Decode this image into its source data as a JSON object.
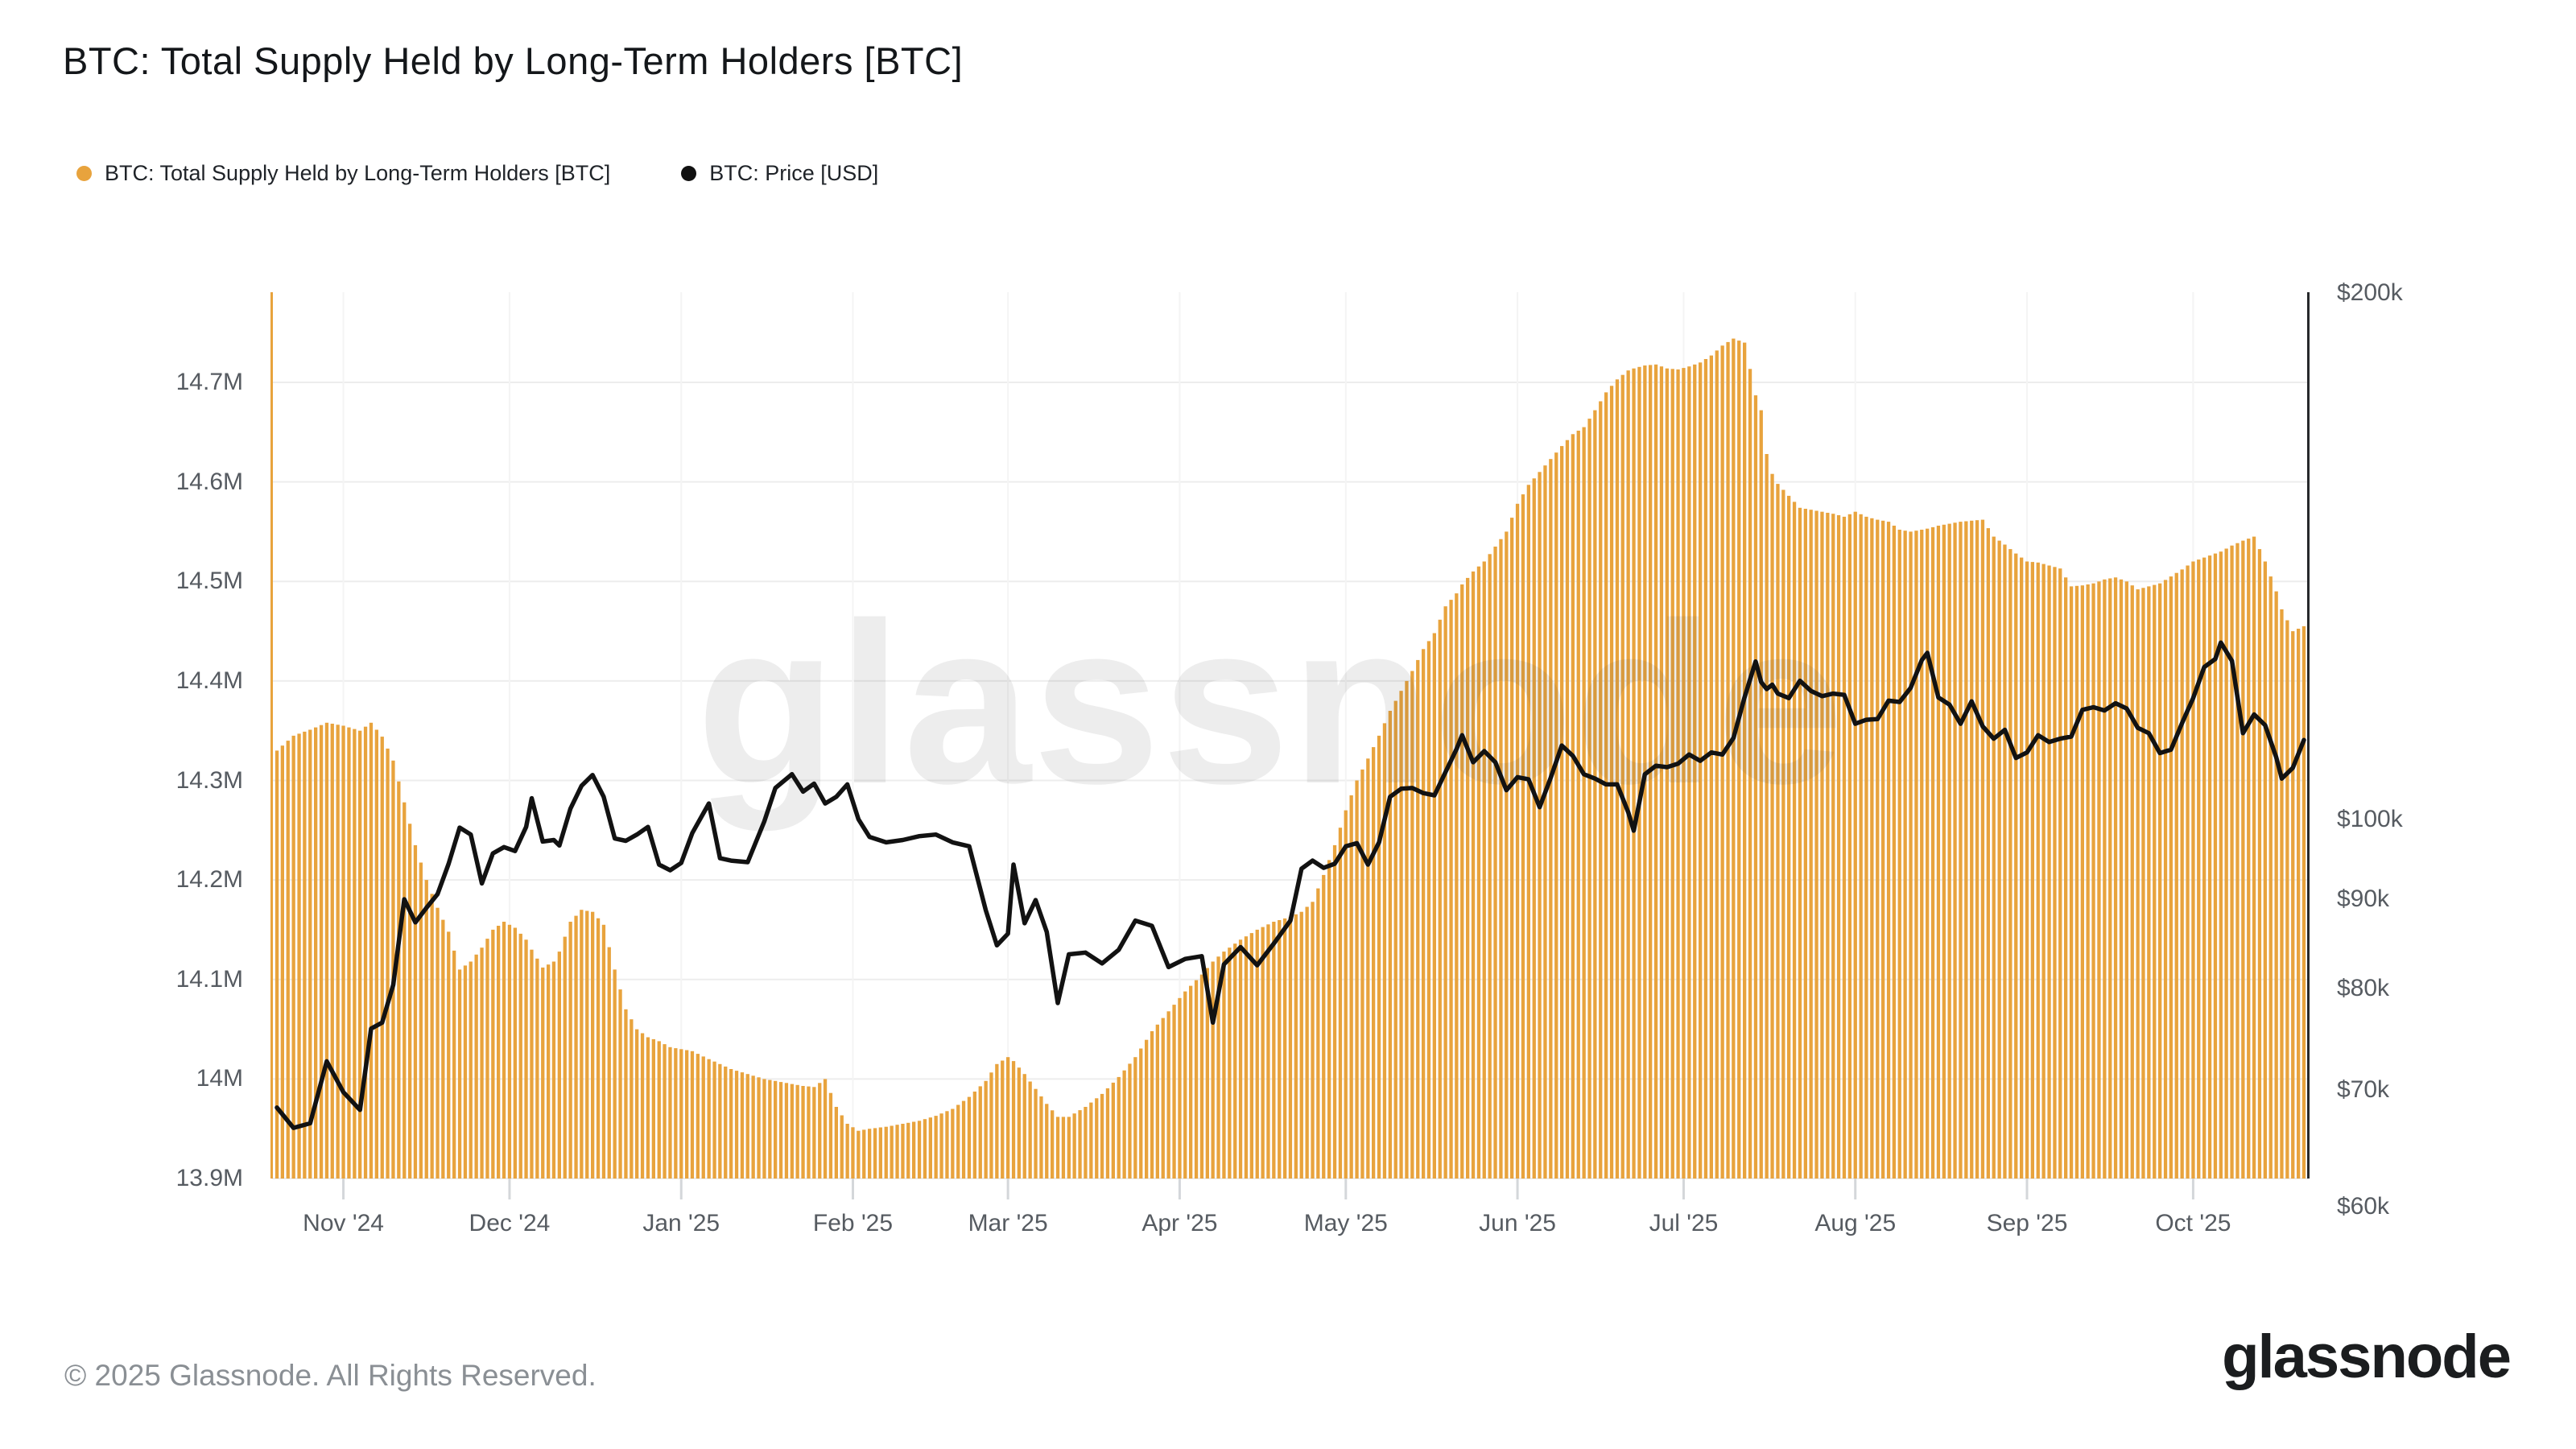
{
  "title": "BTC: Total Supply Held by Long-Term Holders [BTC]",
  "legend": [
    {
      "label": "BTC: Total Supply Held by Long-Term Holders [BTC]",
      "color": "#E8A33D"
    },
    {
      "label": "BTC: Price [USD]",
      "color": "#111111"
    }
  ],
  "watermark": {
    "text": "glassnode"
  },
  "footer": {
    "copyright": "© 2025 Glassnode. All Rights Reserved.",
    "brand": "glassnode"
  },
  "colors": {
    "bar": "#E8A33D",
    "line": "#121212",
    "left_axis_line": "#E8A33D",
    "right_axis_line": "#26282b",
    "gridline": "#ededed",
    "month_gridline": "#f4f4f4",
    "tick": "#d4d7da",
    "axis_text": "#565b61",
    "watermark": "rgba(80,80,80,0.10)"
  },
  "chart_data": {
    "type": "combo",
    "title": "BTC: Total Supply Held by Long-Term Holders [BTC]",
    "series": [
      {
        "name": "BTC: Total Supply Held by Long-Term Holders [BTC]",
        "type": "bar",
        "axis": "left",
        "color": "#E8A33D",
        "unit": "BTC (millions)"
      },
      {
        "name": "BTC: Price [USD]",
        "type": "line",
        "axis": "right",
        "color": "#121212",
        "unit": "USD (thousands)"
      }
    ],
    "x_axis": {
      "range": [
        "2024-10-20",
        "2025-10-21"
      ],
      "ticks": [
        {
          "date": "2024-11-01",
          "label": "Nov '24"
        },
        {
          "date": "2024-12-01",
          "label": "Dec '24"
        },
        {
          "date": "2025-01-01",
          "label": "Jan '25"
        },
        {
          "date": "2025-02-01",
          "label": "Feb '25"
        },
        {
          "date": "2025-03-01",
          "label": "Mar '25"
        },
        {
          "date": "2025-04-01",
          "label": "Apr '25"
        },
        {
          "date": "2025-05-01",
          "label": "May '25"
        },
        {
          "date": "2025-06-01",
          "label": "Jun '25"
        },
        {
          "date": "2025-07-01",
          "label": "Jul '25"
        },
        {
          "date": "2025-08-01",
          "label": "Aug '25"
        },
        {
          "date": "2025-09-01",
          "label": "Sep '25"
        },
        {
          "date": "2025-10-01",
          "label": "Oct '25"
        }
      ]
    },
    "y_left": {
      "scale": "linear",
      "plot_min": 13.9,
      "plot_max": 14.7906,
      "grid": true,
      "ticks": [
        {
          "v": 14.7,
          "label": "14.7M"
        },
        {
          "v": 14.6,
          "label": "14.6M"
        },
        {
          "v": 14.5,
          "label": "14.5M"
        },
        {
          "v": 14.4,
          "label": "14.4M"
        },
        {
          "v": 14.3,
          "label": "14.3M"
        },
        {
          "v": 14.2,
          "label": "14.2M"
        },
        {
          "v": 14.1,
          "label": "14.1M"
        },
        {
          "v": 14.0,
          "label": "14M"
        },
        {
          "v": 13.9,
          "label": "13.9M"
        }
      ]
    },
    "y_right": {
      "scale": "log",
      "plot_min": 62.3,
      "plot_max": 200.2,
      "grid": false,
      "ticks": [
        {
          "v": 200,
          "label": "$200k"
        },
        {
          "v": 100,
          "label": "$100k"
        },
        {
          "v": 90,
          "label": "$90k"
        },
        {
          "v": 80,
          "label": "$80k"
        },
        {
          "v": 70,
          "label": "$70k"
        },
        {
          "v": 60,
          "label": "$60k"
        }
      ]
    },
    "points_format": [
      "date",
      "supply_m_btc",
      "price_k_usd"
    ],
    "points": [
      [
        "2024-10-20",
        14.33,
        68.4
      ],
      [
        "2024-10-23",
        14.345,
        66.6
      ],
      [
        "2024-10-26",
        14.351,
        67.0
      ],
      [
        "2024-10-29",
        14.358,
        72.7
      ],
      [
        "2024-11-01",
        14.355,
        69.8
      ],
      [
        "2024-11-04",
        14.35,
        68.2
      ],
      [
        "2024-11-06",
        14.358,
        75.9
      ],
      [
        "2024-11-08",
        14.344,
        76.5
      ],
      [
        "2024-11-10",
        14.32,
        80.4
      ],
      [
        "2024-11-12",
        14.278,
        90.0
      ],
      [
        "2024-11-14",
        14.235,
        87.3
      ],
      [
        "2024-11-16",
        14.2,
        89.0
      ],
      [
        "2024-11-18",
        14.172,
        90.6
      ],
      [
        "2024-11-20",
        14.148,
        94.3
      ],
      [
        "2024-11-22",
        14.11,
        98.9
      ],
      [
        "2024-11-24",
        14.118,
        98.0
      ],
      [
        "2024-11-26",
        14.132,
        91.9
      ],
      [
        "2024-11-28",
        14.15,
        95.6
      ],
      [
        "2024-11-30",
        14.158,
        96.4
      ],
      [
        "2024-12-02",
        14.152,
        95.9
      ],
      [
        "2024-12-04",
        14.14,
        99.0
      ],
      [
        "2024-12-05",
        14.13,
        102.8
      ],
      [
        "2024-12-07",
        14.112,
        97.1
      ],
      [
        "2024-12-09",
        14.118,
        97.3
      ],
      [
        "2024-12-10",
        14.128,
        96.6
      ],
      [
        "2024-12-12",
        14.158,
        101.4
      ],
      [
        "2024-12-14",
        14.17,
        104.5
      ],
      [
        "2024-12-16",
        14.168,
        106.0
      ],
      [
        "2024-12-18",
        14.155,
        103.0
      ],
      [
        "2024-12-20",
        14.11,
        97.5
      ],
      [
        "2024-12-22",
        14.07,
        97.2
      ],
      [
        "2024-12-24",
        14.05,
        98.0
      ],
      [
        "2024-12-26",
        14.042,
        99.0
      ],
      [
        "2024-12-28",
        14.038,
        94.2
      ],
      [
        "2024-12-30",
        14.032,
        93.5
      ],
      [
        "2025-01-01",
        14.03,
        94.4
      ],
      [
        "2025-01-03",
        14.028,
        98.2
      ],
      [
        "2025-01-06",
        14.02,
        102.1
      ],
      [
        "2025-01-08",
        14.015,
        95.0
      ],
      [
        "2025-01-10",
        14.01,
        94.7
      ],
      [
        "2025-01-13",
        14.005,
        94.5
      ],
      [
        "2025-01-16",
        14.0,
        99.7
      ],
      [
        "2025-01-18",
        13.998,
        104.2
      ],
      [
        "2025-01-21",
        13.995,
        106.1
      ],
      [
        "2025-01-23",
        13.993,
        103.7
      ],
      [
        "2025-01-25",
        13.992,
        104.8
      ],
      [
        "2025-01-27",
        14.0,
        102.1
      ],
      [
        "2025-01-29",
        13.972,
        103.0
      ],
      [
        "2025-01-31",
        13.955,
        104.7
      ],
      [
        "2025-02-02",
        13.948,
        100.0
      ],
      [
        "2025-02-04",
        13.95,
        97.7
      ],
      [
        "2025-02-07",
        13.952,
        97.0
      ],
      [
        "2025-02-10",
        13.955,
        97.3
      ],
      [
        "2025-02-13",
        13.958,
        97.8
      ],
      [
        "2025-02-16",
        13.963,
        98.0
      ],
      [
        "2025-02-19",
        13.97,
        97.0
      ],
      [
        "2025-02-22",
        13.982,
        96.5
      ],
      [
        "2025-02-25",
        13.998,
        88.7
      ],
      [
        "2025-02-27",
        14.015,
        84.7
      ],
      [
        "2025-03-01",
        14.022,
        86.0
      ],
      [
        "2025-03-02",
        14.018,
        94.2
      ],
      [
        "2025-03-04",
        14.005,
        87.2
      ],
      [
        "2025-03-06",
        13.99,
        89.9
      ],
      [
        "2025-03-08",
        13.975,
        86.2
      ],
      [
        "2025-03-10",
        13.962,
        78.5
      ],
      [
        "2025-03-12",
        13.962,
        83.7
      ],
      [
        "2025-03-15",
        13.972,
        83.9
      ],
      [
        "2025-03-18",
        13.985,
        82.7
      ],
      [
        "2025-03-21",
        14.002,
        84.2
      ],
      [
        "2025-03-24",
        14.022,
        87.5
      ],
      [
        "2025-03-27",
        14.048,
        86.9
      ],
      [
        "2025-03-30",
        14.068,
        82.3
      ],
      [
        "2025-04-02",
        14.088,
        83.2
      ],
      [
        "2025-04-05",
        14.105,
        83.5
      ],
      [
        "2025-04-07",
        14.118,
        76.5
      ],
      [
        "2025-04-09",
        14.128,
        82.6
      ],
      [
        "2025-04-12",
        14.14,
        84.5
      ],
      [
        "2025-04-15",
        14.15,
        82.5
      ],
      [
        "2025-04-18",
        14.158,
        84.9
      ],
      [
        "2025-04-21",
        14.163,
        87.5
      ],
      [
        "2025-04-23",
        14.168,
        93.7
      ],
      [
        "2025-04-25",
        14.178,
        94.7
      ],
      [
        "2025-04-27",
        14.205,
        93.8
      ],
      [
        "2025-04-29",
        14.235,
        94.3
      ],
      [
        "2025-05-01",
        14.27,
        96.5
      ],
      [
        "2025-05-03",
        14.3,
        96.9
      ],
      [
        "2025-05-05",
        14.322,
        94.2
      ],
      [
        "2025-05-07",
        14.345,
        97.0
      ],
      [
        "2025-05-09",
        14.37,
        103.0
      ],
      [
        "2025-05-11",
        14.39,
        104.1
      ],
      [
        "2025-05-13",
        14.41,
        104.2
      ],
      [
        "2025-05-15",
        14.432,
        103.5
      ],
      [
        "2025-05-17",
        14.448,
        103.2
      ],
      [
        "2025-05-19",
        14.475,
        106.4
      ],
      [
        "2025-05-21",
        14.488,
        109.7
      ],
      [
        "2025-05-22",
        14.497,
        111.7
      ],
      [
        "2025-05-24",
        14.51,
        107.8
      ],
      [
        "2025-05-26",
        14.52,
        109.4
      ],
      [
        "2025-05-28",
        14.535,
        107.8
      ],
      [
        "2025-05-30",
        14.55,
        103.9
      ],
      [
        "2025-06-01",
        14.578,
        105.7
      ],
      [
        "2025-06-03",
        14.597,
        105.4
      ],
      [
        "2025-06-05",
        14.61,
        101.6
      ],
      [
        "2025-06-07",
        14.623,
        105.6
      ],
      [
        "2025-06-09",
        14.636,
        110.2
      ],
      [
        "2025-06-11",
        14.648,
        108.7
      ],
      [
        "2025-06-13",
        14.655,
        106.1
      ],
      [
        "2025-06-15",
        14.672,
        105.5
      ],
      [
        "2025-06-17",
        14.69,
        104.7
      ],
      [
        "2025-06-19",
        14.703,
        104.7
      ],
      [
        "2025-06-21",
        14.712,
        100.9
      ],
      [
        "2025-06-22",
        14.714,
        98.5
      ],
      [
        "2025-06-24",
        14.717,
        106.1
      ],
      [
        "2025-06-26",
        14.718,
        107.3
      ],
      [
        "2025-06-28",
        14.714,
        107.1
      ],
      [
        "2025-06-30",
        14.713,
        107.6
      ],
      [
        "2025-07-02",
        14.716,
        108.9
      ],
      [
        "2025-07-04",
        14.72,
        108.0
      ],
      [
        "2025-07-06",
        14.727,
        109.2
      ],
      [
        "2025-07-08",
        14.737,
        108.9
      ],
      [
        "2025-07-10",
        14.744,
        111.3
      ],
      [
        "2025-07-12",
        14.74,
        117.4
      ],
      [
        "2025-07-14",
        14.687,
        123.1
      ],
      [
        "2025-07-15",
        14.672,
        119.8
      ],
      [
        "2025-07-16",
        14.628,
        118.7
      ],
      [
        "2025-07-17",
        14.608,
        119.4
      ],
      [
        "2025-07-18",
        14.598,
        118.0
      ],
      [
        "2025-07-20",
        14.586,
        117.3
      ],
      [
        "2025-07-22",
        14.574,
        120.0
      ],
      [
        "2025-07-24",
        14.572,
        118.4
      ],
      [
        "2025-07-26",
        14.57,
        117.6
      ],
      [
        "2025-07-28",
        14.568,
        118.0
      ],
      [
        "2025-07-30",
        14.565,
        117.8
      ],
      [
        "2025-08-01",
        14.57,
        113.4
      ],
      [
        "2025-08-03",
        14.565,
        114.0
      ],
      [
        "2025-08-05",
        14.562,
        114.1
      ],
      [
        "2025-08-07",
        14.56,
        116.9
      ],
      [
        "2025-08-09",
        14.552,
        116.7
      ],
      [
        "2025-08-11",
        14.55,
        118.9
      ],
      [
        "2025-08-13",
        14.552,
        123.3
      ],
      [
        "2025-08-14",
        14.553,
        124.5
      ],
      [
        "2025-08-16",
        14.556,
        117.4
      ],
      [
        "2025-08-18",
        14.558,
        116.3
      ],
      [
        "2025-08-20",
        14.56,
        113.4
      ],
      [
        "2025-08-22",
        14.561,
        116.8
      ],
      [
        "2025-08-24",
        14.562,
        113.0
      ],
      [
        "2025-08-26",
        14.545,
        111.2
      ],
      [
        "2025-08-28",
        14.537,
        112.5
      ],
      [
        "2025-08-30",
        14.528,
        108.4
      ],
      [
        "2025-09-01",
        14.52,
        109.2
      ],
      [
        "2025-09-03",
        14.519,
        111.7
      ],
      [
        "2025-09-05",
        14.516,
        110.7
      ],
      [
        "2025-09-07",
        14.513,
        111.2
      ],
      [
        "2025-09-09",
        14.495,
        111.5
      ],
      [
        "2025-09-11",
        14.496,
        115.5
      ],
      [
        "2025-09-13",
        14.498,
        115.9
      ],
      [
        "2025-09-15",
        14.502,
        115.4
      ],
      [
        "2025-09-17",
        14.504,
        116.5
      ],
      [
        "2025-09-19",
        14.5,
        115.7
      ],
      [
        "2025-09-21",
        14.492,
        112.8
      ],
      [
        "2025-09-23",
        14.495,
        112.0
      ],
      [
        "2025-09-25",
        14.498,
        109.1
      ],
      [
        "2025-09-27",
        14.505,
        109.6
      ],
      [
        "2025-09-29",
        14.512,
        113.5
      ],
      [
        "2025-10-01",
        14.52,
        117.3
      ],
      [
        "2025-10-03",
        14.524,
        122.2
      ],
      [
        "2025-10-05",
        14.528,
        123.5
      ],
      [
        "2025-10-06",
        14.53,
        126.2
      ],
      [
        "2025-10-08",
        14.536,
        123.2
      ],
      [
        "2025-10-10",
        14.541,
        112.0
      ],
      [
        "2025-10-12",
        14.545,
        114.8
      ],
      [
        "2025-10-14",
        14.52,
        113.2
      ],
      [
        "2025-10-16",
        14.49,
        108.5
      ],
      [
        "2025-10-17",
        14.472,
        105.5
      ],
      [
        "2025-10-19",
        14.45,
        107.0
      ],
      [
        "2025-10-21",
        14.455,
        111.0
      ]
    ]
  }
}
